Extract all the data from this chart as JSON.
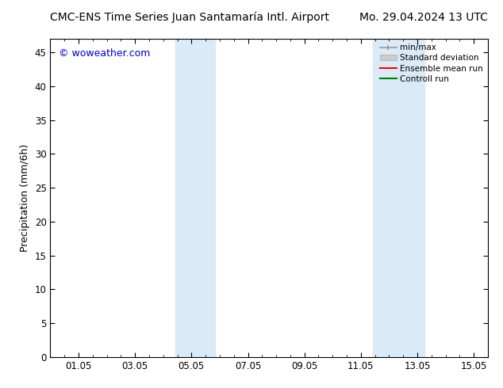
{
  "title_left": "CMC-ENS Time Series Juan Santamaría Intl. Airport",
  "title_right": "Mo. 29.04.2024 13 UTC",
  "ylabel": "Precipitation (mm/6h)",
  "watermark": "© woweather.com",
  "background_color": "#ffffff",
  "plot_bg_color": "#ffffff",
  "ylim": [
    0,
    47
  ],
  "yticks": [
    0,
    5,
    10,
    15,
    20,
    25,
    30,
    35,
    40,
    45
  ],
  "xtick_labels": [
    "01.05",
    "03.05",
    "05.05",
    "07.05",
    "09.05",
    "11.05",
    "13.05",
    "15.05"
  ],
  "xtick_positions": [
    1,
    3,
    5,
    7,
    9,
    11,
    13,
    15
  ],
  "xlim": [
    0.0,
    15.5
  ],
  "shade_bands": [
    {
      "start_day": 4.42,
      "end_day": 5.83
    },
    {
      "start_day": 11.42,
      "end_day": 13.25
    }
  ],
  "shade_color": "#daeaf7",
  "legend_entries": [
    {
      "label": "min/max",
      "color": "#999999",
      "lw": 1.2,
      "style": "minmax"
    },
    {
      "label": "Standard deviation",
      "color": "#cccccc",
      "lw": 6,
      "style": "rect"
    },
    {
      "label": "Ensemble mean run",
      "color": "#ff0000",
      "lw": 1.5,
      "style": "line"
    },
    {
      "label": "Controll run",
      "color": "#008000",
      "lw": 1.5,
      "style": "line"
    }
  ],
  "title_fontsize": 10,
  "tick_fontsize": 8.5,
  "ylabel_fontsize": 9,
  "legend_fontsize": 7.5,
  "watermark_color": "#0000cc",
  "watermark_fontsize": 9
}
